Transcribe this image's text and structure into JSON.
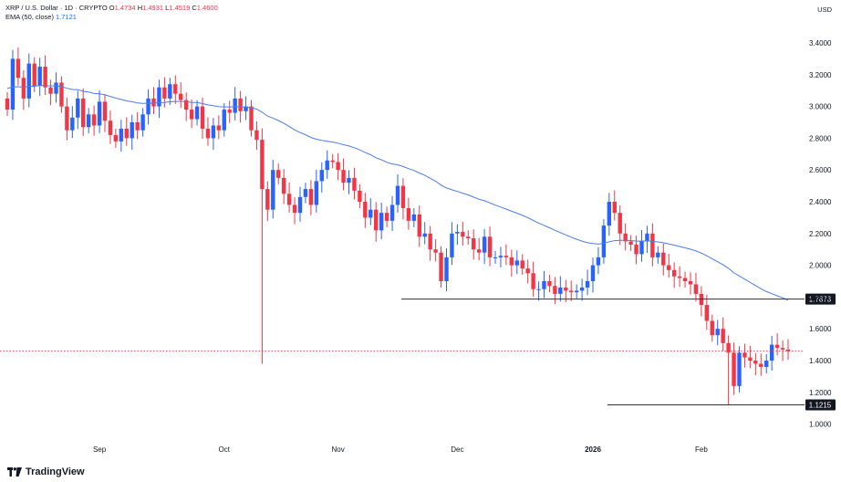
{
  "header": {
    "symbol": "XRP / U.S. Dollar · 1D · CRYPTO",
    "open_label": "O",
    "open": "1.4734",
    "high_label": "H",
    "high": "1.4931",
    "low_label": "L",
    "low": "1.4519",
    "close_label": "C",
    "close": "1.4600",
    "indicator": "EMA (50, close)",
    "indicator_value": "1.7121"
  },
  "currency": "USD",
  "brand": "TradingView",
  "colors": {
    "up": "#2962ff",
    "down": "#f23645",
    "ema": "#4a7cf0",
    "hline": "#333333",
    "bg": "#ffffff"
  },
  "chart_data": {
    "type": "candlestick",
    "y_ticks": [
      "3.4000",
      "3.2000",
      "3.0000",
      "2.8000",
      "2.6000",
      "2.4000",
      "2.2000",
      "2.0000",
      "1.8000",
      "1.6000",
      "1.4000",
      "1.2000",
      "1.0000"
    ],
    "x_ticks": [
      "Sep",
      "Oct",
      "Nov",
      "Dec",
      "2026",
      "Feb"
    ],
    "ylim": [
      0.95,
      3.5
    ],
    "horizontal_lines": [
      {
        "value": 1.7873,
        "label": "1.7873"
      },
      {
        "value": 1.1215,
        "label": "1.1215"
      }
    ],
    "last_price": 1.46,
    "closes": [
      2.98,
      3.3,
      3.18,
      3.05,
      3.27,
      3.13,
      3.25,
      3.12,
      3.08,
      3.15,
      3.0,
      2.85,
      2.93,
      3.05,
      2.87,
      2.95,
      2.88,
      3.03,
      2.91,
      2.82,
      2.78,
      2.86,
      2.8,
      2.9,
      2.85,
      2.95,
      3.05,
      3.0,
      3.12,
      3.05,
      3.14,
      3.08,
      3.04,
      2.98,
      2.92,
      3.0,
      2.86,
      2.8,
      2.88,
      2.85,
      2.98,
      2.96,
      3.05,
      2.97,
      3.0,
      2.85,
      2.79,
      2.48,
      2.35,
      2.6,
      2.55,
      2.45,
      2.38,
      2.33,
      2.43,
      2.48,
      2.38,
      2.53,
      2.6,
      2.66,
      2.65,
      2.6,
      2.52,
      2.55,
      2.47,
      2.4,
      2.3,
      2.35,
      2.22,
      2.33,
      2.28,
      2.38,
      2.5,
      2.36,
      2.28,
      2.32,
      2.18,
      2.2,
      2.1,
      2.08,
      1.9,
      2.05,
      2.2,
      2.21,
      2.18,
      2.17,
      2.1,
      2.08,
      2.18,
      2.05,
      2.05,
      2.06,
      2.05,
      2.0,
      2.03,
      1.98,
      1.95,
      1.85,
      1.85,
      1.9,
      1.87,
      1.82,
      1.86,
      1.84,
      1.83,
      1.84,
      1.86,
      1.9,
      2.0,
      2.05,
      2.25,
      2.4,
      2.33,
      2.2,
      2.15,
      2.13,
      2.07,
      2.15,
      2.2,
      2.05,
      2.08,
      2.0,
      1.97,
      1.93,
      1.92,
      1.9,
      1.88,
      1.82,
      1.75,
      1.65,
      1.56,
      1.6,
      1.51,
      1.45,
      1.24,
      1.45,
      1.42,
      1.4,
      1.38,
      1.36,
      1.4,
      1.5,
      1.48,
      1.47,
      1.46
    ]
  }
}
